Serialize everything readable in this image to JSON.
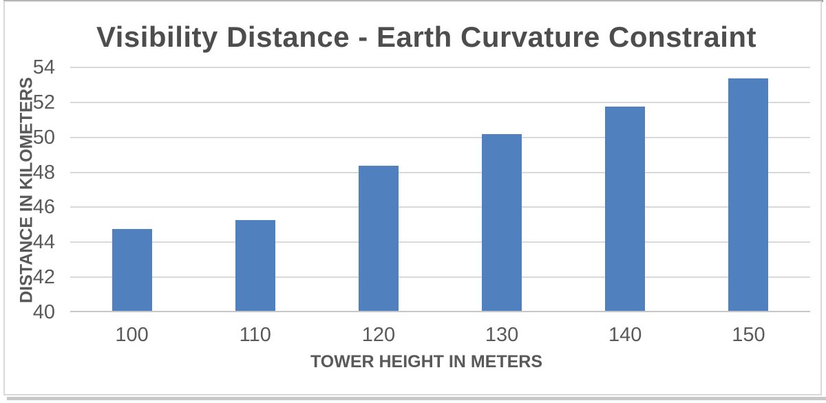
{
  "chart_data": {
    "type": "bar",
    "title": "Visibility Distance - Earth Curvature Constraint",
    "xlabel": "TOWER HEIGHT IN METERS",
    "ylabel": "DISTANCE IN KILOMETERS",
    "categories": [
      "100",
      "110",
      "120",
      "130",
      "140",
      "150"
    ],
    "values": [
      44.7,
      45.2,
      48.3,
      50.1,
      51.7,
      53.3
    ],
    "ylim": [
      40,
      54
    ],
    "yticks": [
      40,
      42,
      44,
      46,
      48,
      50,
      52,
      54
    ],
    "grid": "horizontal",
    "legend": "none",
    "colors": {
      "bar_fill": "#5081be",
      "gridline": "#d9d9d9",
      "axis_line": "#c6c6c6",
      "title_text": "#4d4d4d",
      "label_text": "#595959",
      "frame_border": "#d9d9d9"
    }
  }
}
